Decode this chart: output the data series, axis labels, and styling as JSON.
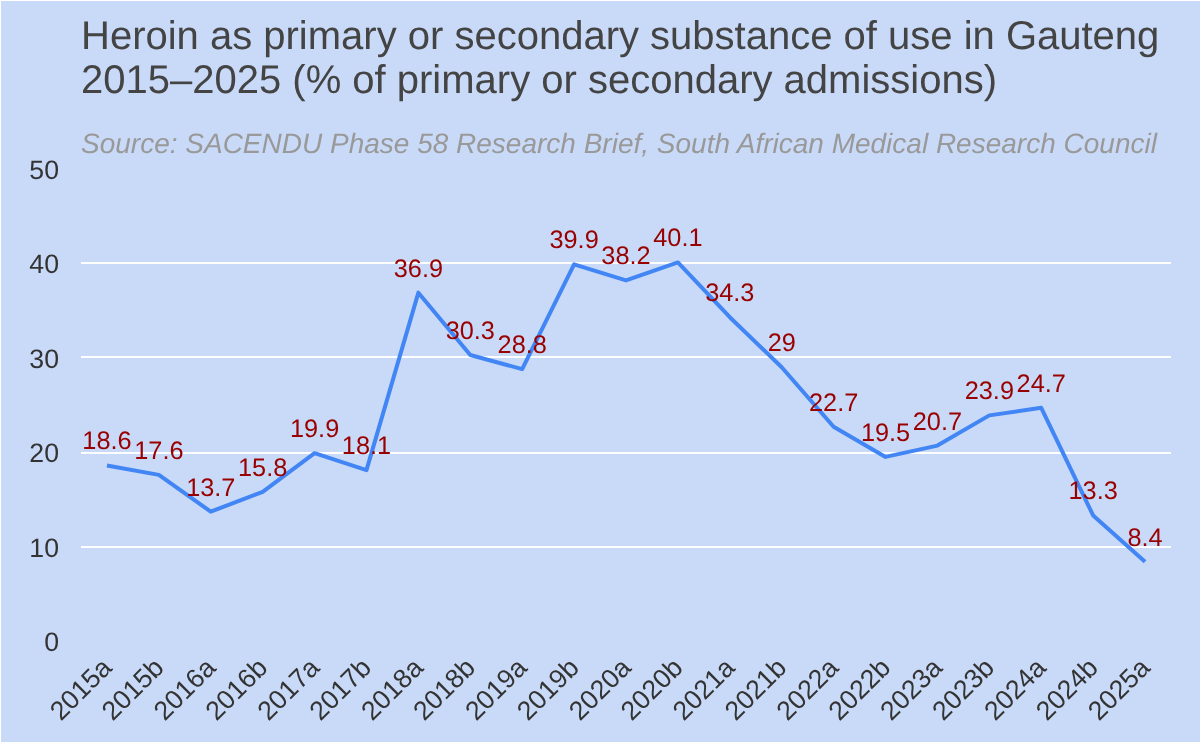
{
  "chart_data": {
    "type": "line",
    "title": "Heroin as primary or secondary substance of use in Gauteng 2015–2025 (% of primary or secondary admissions)",
    "annotations": [
      "Source: SACENDU Phase 58 Research Brief, South African Medical Research Council"
    ],
    "categories": [
      "2015a",
      "2015b",
      "2016a",
      "2016b",
      "2017a",
      "2017b",
      "2018a",
      "2018b",
      "2019a",
      "2019b",
      "2020a",
      "2020b",
      "2021a",
      "2021b",
      "2022a",
      "2022b",
      "2023a",
      "2023b",
      "2024a",
      "2024b",
      "2025a"
    ],
    "series": [
      {
        "color": "#4285f4",
        "values": [
          18.6,
          17.6,
          13.7,
          15.8,
          19.9,
          18.1,
          36.9,
          30.3,
          28.8,
          39.9,
          38.2,
          40.1,
          34.3,
          29,
          22.7,
          19.5,
          20.7,
          23.9,
          24.7,
          13.3,
          8.4
        ]
      }
    ],
    "ylim": [
      0,
      50
    ],
    "yticks": [
      0,
      10,
      20,
      30,
      40,
      50
    ],
    "grid": "y",
    "data_labels": true,
    "marker": "none",
    "line_style": "solid"
  }
}
